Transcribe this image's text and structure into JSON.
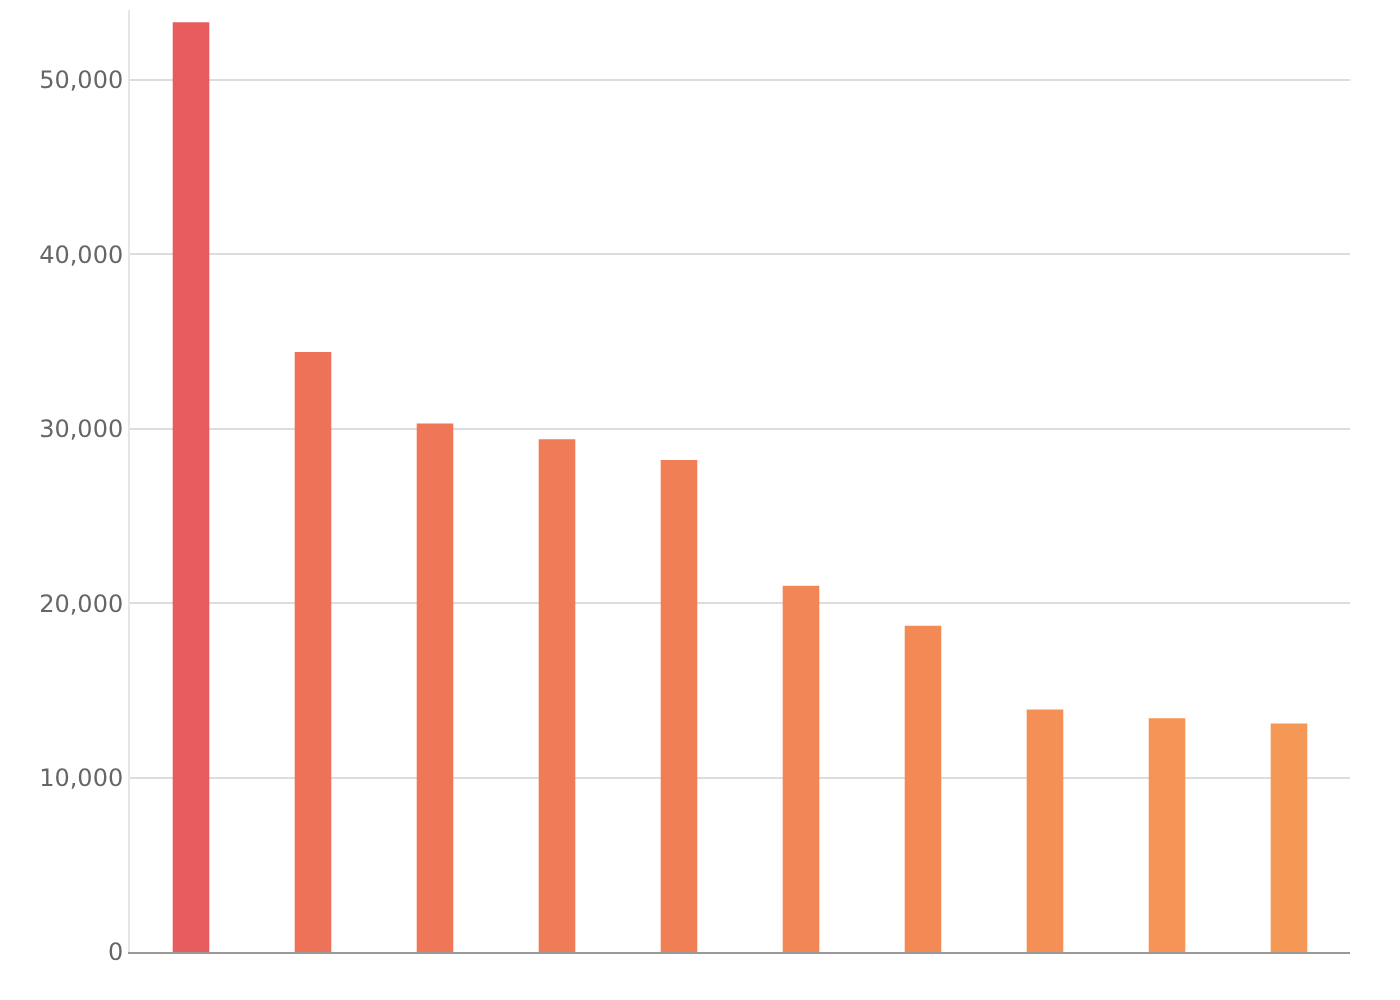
{
  "chart_data": {
    "type": "bar",
    "categories": [
      null,
      null,
      null,
      null,
      null,
      null,
      null,
      null,
      null,
      null
    ],
    "values": [
      53300,
      34400,
      30300,
      29400,
      28200,
      21000,
      18700,
      13900,
      13400,
      13100
    ],
    "colors": [
      "#e85c5e",
      "#ee7258",
      "#ef7757",
      "#f07b57",
      "#f17f56",
      "#f28655",
      "#f38a55",
      "#f48f55",
      "#f59455",
      "#f59855"
    ],
    "ylim": [
      0,
      54000
    ],
    "yticks": [
      {
        "value": 0,
        "label": "0"
      },
      {
        "value": 10000,
        "label": "10,000"
      },
      {
        "value": 20000,
        "label": "20,000"
      },
      {
        "value": 30000,
        "label": "30,000"
      },
      {
        "value": 40000,
        "label": "40,000"
      },
      {
        "value": 50000,
        "label": "50,000"
      }
    ],
    "grid": "y"
  }
}
